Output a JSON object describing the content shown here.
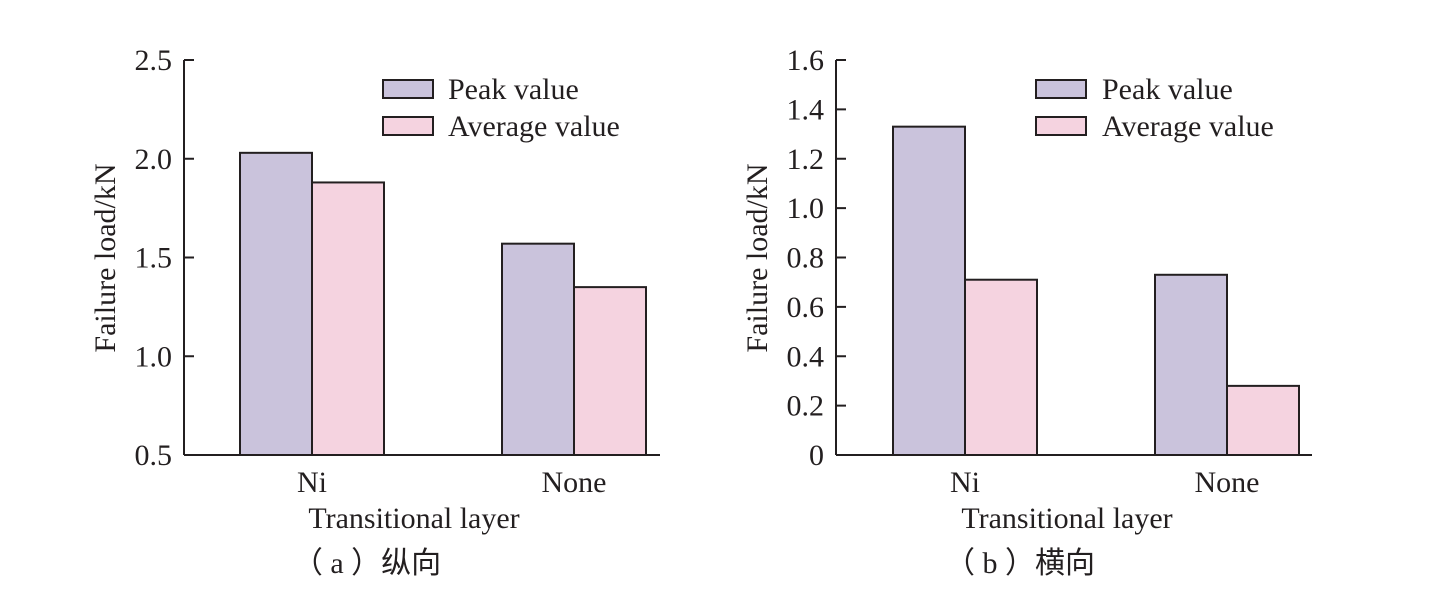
{
  "chart_data": [
    {
      "type": "bar",
      "caption": "（ a ）纵向",
      "xlabel": "Transitional layer",
      "ylabel": "Failure load/kN",
      "categories": [
        "Ni",
        "None"
      ],
      "ylim": [
        0.5,
        2.5
      ],
      "yticks": [
        "0.5",
        "1.0",
        "1.5",
        "2.0",
        "2.5"
      ],
      "grid": false,
      "legend_position": "top-right",
      "series": [
        {
          "name": "Peak value",
          "color": "#cac3dc",
          "values": [
            2.03,
            1.57
          ]
        },
        {
          "name": "Average value",
          "color": "#f5d3e0",
          "values": [
            1.88,
            1.35
          ]
        }
      ]
    },
    {
      "type": "bar",
      "caption": "（ b ）横向",
      "xlabel": "Transitional layer",
      "ylabel": "Failure load/kN",
      "categories": [
        "Ni",
        "None"
      ],
      "ylim": [
        0,
        1.6
      ],
      "yticks": [
        "0",
        "0.2",
        "0.4",
        "0.6",
        "0.8",
        "1.0",
        "1.2",
        "1.4",
        "1.6"
      ],
      "grid": false,
      "legend_position": "top-right",
      "series": [
        {
          "name": "Peak value",
          "color": "#cac3dc",
          "values": [
            1.33,
            0.73
          ]
        },
        {
          "name": "Average value",
          "color": "#f5d3e0",
          "values": [
            0.71,
            0.28
          ]
        }
      ]
    }
  ]
}
